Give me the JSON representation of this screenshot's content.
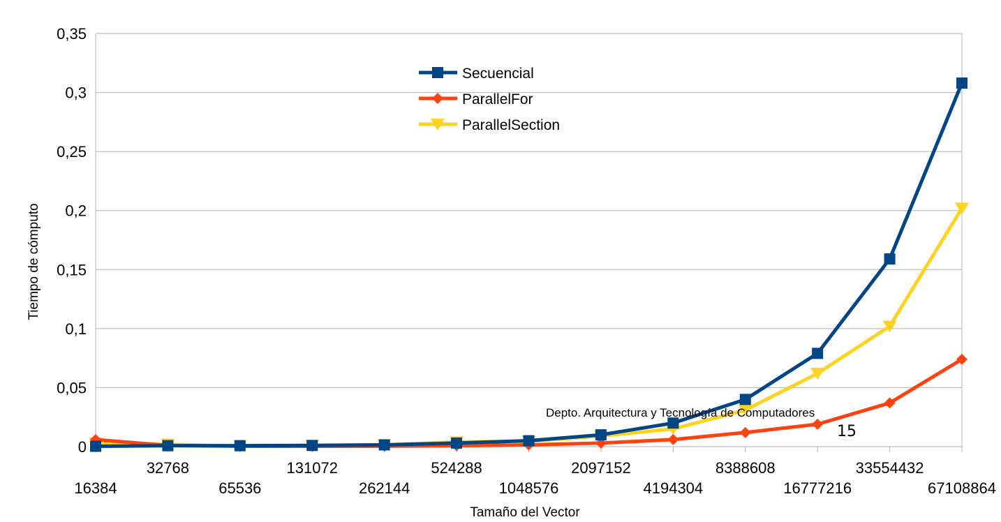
{
  "chart_data": {
    "type": "line",
    "title": "",
    "xlabel": "Tamaño del Vector",
    "ylabel": "Tiempo de cómputo",
    "categories": [
      "16384",
      "32768",
      "65536",
      "131072",
      "262144",
      "524288",
      "1048576",
      "2097152",
      "4194304",
      "8388608",
      "16777216",
      "33554432",
      "67108864"
    ],
    "ylim": [
      0,
      0.35
    ],
    "yticks": [
      0,
      0.05,
      0.1,
      0.15,
      0.2,
      0.25,
      0.3,
      0.35
    ],
    "ytick_labels": [
      "0",
      "0,05",
      "0,1",
      "0,15",
      "0,2",
      "0,25",
      "0,3",
      "0,35"
    ],
    "grid": true,
    "legend_position": "top-center",
    "series": [
      {
        "name": "Secuencial",
        "color": "#004586",
        "marker": "square",
        "values": [
          0.0003,
          0.0008,
          0.0008,
          0.001,
          0.0015,
          0.003,
          0.005,
          0.01,
          0.02,
          0.04,
          0.079,
          0.159,
          0.308
        ]
      },
      {
        "name": "ParallelFor",
        "color": "#ff420e",
        "marker": "diamond",
        "values": [
          0.006,
          0.001,
          0.0003,
          0.0003,
          0.0004,
          0.0008,
          0.0015,
          0.003,
          0.006,
          0.012,
          0.019,
          0.037,
          0.074
        ]
      },
      {
        "name": "ParallelSection",
        "color": "#ffd320",
        "marker": "triangle-down",
        "values": [
          0.003,
          0.002,
          0.0004,
          0.0008,
          0.0015,
          0.004,
          0.0045,
          0.009,
          0.015,
          0.031,
          0.062,
          0.102,
          0.202
        ]
      }
    ]
  },
  "footer": {
    "department": "Depto. Arquitectura y Tecnología de Computadores",
    "page_number": "15"
  }
}
